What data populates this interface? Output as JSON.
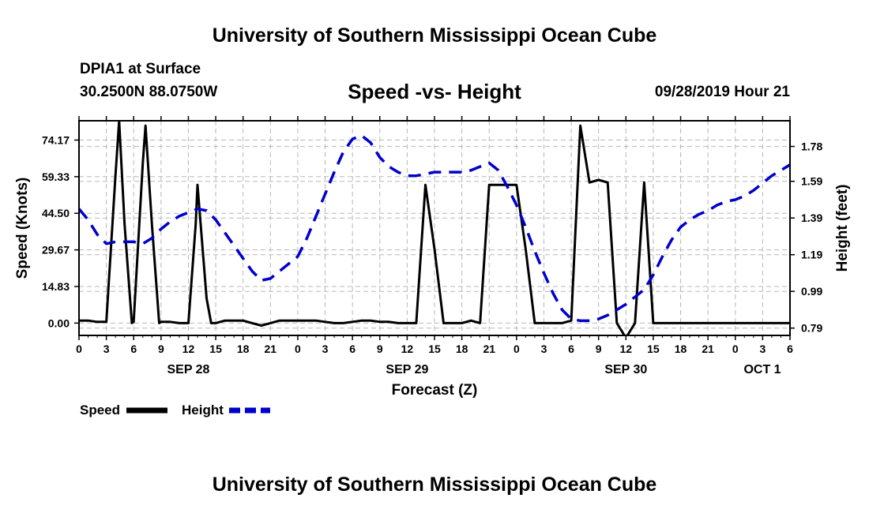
{
  "header": {
    "title": "University of Southern Mississippi Ocean Cube",
    "station": "DPIA1 at Surface",
    "coords": "30.2500N 88.0750W",
    "chart_title": "Speed -vs- Height",
    "datetime": "09/28/2019 Hour 21"
  },
  "footer": {
    "title": "University of Southern Mississippi Ocean Cube"
  },
  "colors": {
    "speed": "#000000",
    "height": "#0000cc",
    "grid": "#b8b8b8"
  },
  "chart_data": {
    "type": "line",
    "title": "Speed -vs- Height",
    "xlabel": "Forecast (Z)",
    "ylabel": "Speed (Knots)",
    "y2label": "Height (feet)",
    "x_tick_labels": [
      "0",
      "3",
      "6",
      "9",
      "12",
      "15",
      "18",
      "21",
      "0",
      "3",
      "6",
      "9",
      "12",
      "15",
      "18",
      "21",
      "0",
      "3",
      "6",
      "9",
      "12",
      "15",
      "18",
      "21",
      "0",
      "3",
      "6"
    ],
    "date_labels": [
      {
        "label": "SEP 28",
        "hour": 12
      },
      {
        "label": "SEP 29",
        "hour": 36
      },
      {
        "label": "SEP 30",
        "hour": 60
      },
      {
        "label": "OCT 1",
        "hour": 81
      }
    ],
    "xlim": [
      0,
      78
    ],
    "ylim": [
      -5,
      82
    ],
    "y_ticks": [
      0.0,
      14.83,
      29.67,
      44.5,
      59.33,
      74.17
    ],
    "y_tick_labels": [
      "0.00",
      "14.83",
      "29.67",
      "44.50",
      "59.33",
      "74.17"
    ],
    "y2lim": [
      0.75,
      1.92
    ],
    "y2_ticks": [
      0.79,
      0.99,
      1.19,
      1.39,
      1.59,
      1.78
    ],
    "y2_tick_labels": [
      "0.79",
      "0.99",
      "1.19",
      "1.39",
      "1.59",
      "1.78"
    ],
    "grid": true,
    "legend_position": "bottom-left",
    "series": [
      {
        "name": "Speed",
        "axis": "left",
        "style": "solid",
        "x": [
          0,
          1,
          2,
          3,
          4,
          4.4,
          5,
          5.8,
          6,
          7,
          7.3,
          8,
          8.8,
          9,
          10,
          11,
          12,
          12.8,
          13,
          14,
          14.5,
          15,
          16,
          17,
          18,
          19,
          20,
          21,
          22,
          23,
          24,
          25,
          26,
          27,
          28,
          29,
          30,
          31,
          32,
          33,
          34,
          35,
          36,
          37,
          38,
          39,
          40,
          41,
          42,
          43,
          44,
          45,
          46,
          47,
          48,
          49,
          50,
          51,
          52,
          53,
          54,
          55,
          56,
          57,
          58,
          59,
          60,
          61,
          62,
          63,
          64,
          65,
          66,
          67,
          68,
          69,
          70,
          71,
          72,
          73,
          74,
          75,
          76,
          77,
          78
        ],
        "values": [
          1,
          1,
          0.5,
          0.5,
          60,
          82,
          40,
          0,
          0.5,
          65,
          80,
          40,
          0,
          0.5,
          0.5,
          0,
          0,
          40,
          56,
          10,
          0,
          0,
          1,
          1,
          1,
          0,
          -1,
          0,
          1,
          1,
          1,
          1,
          1,
          0.5,
          0,
          0,
          0.5,
          1,
          1,
          0.5,
          0.5,
          0,
          0,
          0,
          56,
          30,
          0,
          0,
          0,
          1,
          0,
          56,
          56,
          56,
          56,
          30,
          0,
          0,
          0,
          0,
          1,
          80,
          57,
          58,
          57,
          0,
          -6,
          0,
          57,
          0,
          0,
          0,
          0,
          0,
          0,
          0,
          0,
          0,
          0,
          0,
          0,
          0,
          0,
          0,
          0
        ],
        "values_note": ""
      },
      {
        "name": "Height",
        "axis": "right",
        "style": "dashed",
        "x": [
          0,
          1,
          2,
          3,
          4,
          5,
          6,
          7,
          8,
          9,
          10,
          11,
          12,
          13,
          14,
          15,
          16,
          17,
          18,
          19,
          20,
          21,
          22,
          23,
          24,
          25,
          26,
          27,
          28,
          29,
          30,
          31,
          32,
          33,
          34,
          35,
          36,
          37,
          38,
          39,
          40,
          41,
          42,
          43,
          44,
          45,
          46,
          47,
          48,
          49,
          50,
          51,
          52,
          53,
          54,
          55,
          56,
          57,
          58,
          59,
          60,
          61,
          62,
          63,
          64,
          65,
          66,
          67,
          68,
          69,
          70,
          71,
          72,
          73,
          74,
          75,
          76,
          77,
          78
        ],
        "values": [
          1.44,
          1.38,
          1.3,
          1.25,
          1.26,
          1.26,
          1.26,
          1.25,
          1.28,
          1.33,
          1.37,
          1.4,
          1.42,
          1.44,
          1.43,
          1.38,
          1.31,
          1.24,
          1.17,
          1.1,
          1.05,
          1.06,
          1.1,
          1.14,
          1.18,
          1.28,
          1.4,
          1.52,
          1.64,
          1.75,
          1.82,
          1.84,
          1.8,
          1.72,
          1.67,
          1.64,
          1.62,
          1.62,
          1.63,
          1.64,
          1.64,
          1.64,
          1.64,
          1.65,
          1.67,
          1.69,
          1.65,
          1.56,
          1.46,
          1.34,
          1.21,
          1.09,
          0.98,
          0.89,
          0.84,
          0.83,
          0.83,
          0.84,
          0.86,
          0.89,
          0.92,
          0.96,
          1.0,
          1.08,
          1.18,
          1.27,
          1.34,
          1.38,
          1.41,
          1.43,
          1.46,
          1.48,
          1.49,
          1.51,
          1.54,
          1.58,
          1.62,
          1.65,
          1.68
        ]
      }
    ]
  },
  "legend": {
    "speed_label": "Speed",
    "height_label": "Height"
  }
}
